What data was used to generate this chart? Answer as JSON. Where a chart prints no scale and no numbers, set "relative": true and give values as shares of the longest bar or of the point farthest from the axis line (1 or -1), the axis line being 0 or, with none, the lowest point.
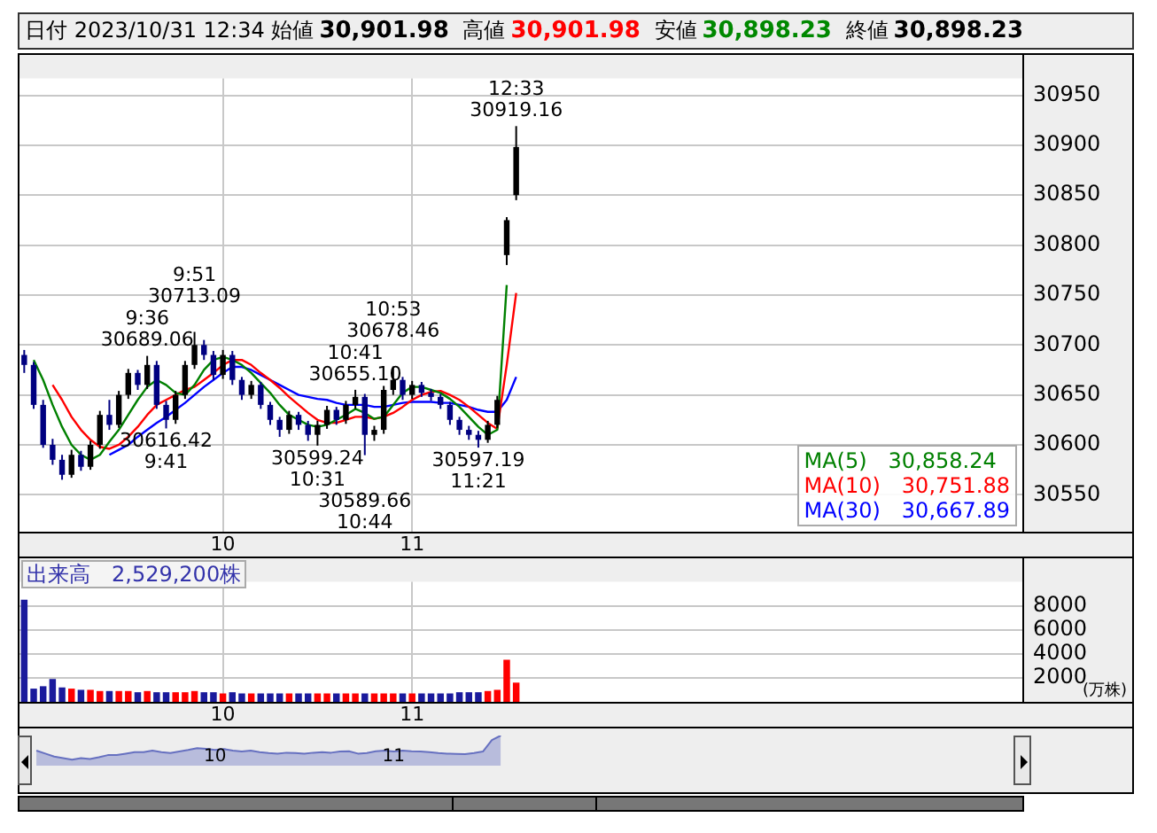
{
  "chart_data": [
    {
      "type": "candlestick",
      "title": "日付 2023/10/31 12:34",
      "annotations": [
        "始値 30,901.98",
        "高値 30,901.98",
        "安値 30,898.23",
        "終値 30,898.23",
        {
          "text": "12:33\n30919.16",
          "y": 30919.16
        },
        {
          "text": "9:36\n30689.06",
          "y": 30689.06
        },
        {
          "text": "9:51\n30713.09",
          "y": 30713.09
        },
        {
          "text": "30616.42\n9:41",
          "y": 30616.42
        },
        {
          "text": "10:41\n30655.10",
          "y": 30655.1
        },
        {
          "text": "10:53\n30678.46",
          "y": 30678.46
        },
        {
          "text": "30599.24\n10:31",
          "y": 30599.24
        },
        {
          "text": "30589.66\n10:44",
          "y": 30589.66
        },
        {
          "text": "30597.19\n11:21",
          "y": 30597.19
        }
      ],
      "categories": [
        null,
        null,
        null,
        null,
        null,
        null,
        null,
        null,
        null,
        null,
        null,
        null,
        null,
        null,
        null,
        null,
        null,
        null,
        null,
        null,
        null,
        "10",
        null,
        null,
        null,
        null,
        null,
        null,
        null,
        null,
        null,
        null,
        null,
        null,
        null,
        null,
        null,
        null,
        null,
        null,
        null,
        "11",
        null,
        null,
        null,
        null,
        null,
        null,
        null,
        null,
        null,
        null,
        null,
        null,
        null,
        null,
        null,
        null,
        null,
        null,
        null,
        null,
        null,
        null,
        null,
        null,
        null,
        null,
        null,
        null,
        null,
        null,
        null,
        null,
        null,
        null,
        null,
        null,
        null,
        null,
        null,
        null,
        null,
        null,
        null,
        null,
        null,
        null,
        null,
        null,
        null,
        null,
        null,
        null,
        null,
        null,
        null,
        null,
        null,
        null,
        null,
        null,
        null,
        null,
        null,
        null
      ],
      "ohlc": [
        [
          30690,
          30695,
          30672,
          30680
        ],
        [
          30680,
          30683,
          30636,
          30640
        ],
        [
          30640,
          30645,
          30597,
          30600
        ],
        [
          30600,
          30606,
          30580,
          30585
        ],
        [
          30585,
          30590,
          30565,
          30570
        ],
        [
          30570,
          30595,
          30567,
          30590
        ],
        [
          30590,
          30594,
          30574,
          30578
        ],
        [
          30578,
          30604,
          30575,
          30600
        ],
        [
          30600,
          30634,
          30596,
          30630
        ],
        [
          30630,
          30645,
          30615,
          30620
        ],
        [
          30620,
          30654,
          30617,
          30650
        ],
        [
          30650,
          30676,
          30646,
          30672
        ],
        [
          30672,
          30675,
          30655,
          30660
        ],
        [
          30660,
          30689.06,
          30656,
          30680
        ],
        [
          30680,
          30684,
          30636,
          30640
        ],
        [
          30640,
          30644,
          30616.42,
          30625
        ],
        [
          30625,
          30654,
          30621,
          30650
        ],
        [
          30650,
          30684,
          30646,
          30680
        ],
        [
          30680,
          30713.09,
          30676,
          30700
        ],
        [
          30700,
          30705,
          30685,
          30690
        ],
        [
          30690,
          30694,
          30665,
          30670
        ],
        [
          30670,
          30695,
          30666,
          30690
        ],
        [
          30690,
          30694,
          30660,
          30665
        ],
        [
          30665,
          30668,
          30645,
          30650
        ],
        [
          30650,
          30664,
          30646,
          30660
        ],
        [
          30660,
          30663,
          30636,
          30640
        ],
        [
          30640,
          30643,
          30620,
          30625
        ],
        [
          30625,
          30628,
          30608,
          30615
        ],
        [
          30615,
          30634,
          30611,
          30630
        ],
        [
          30630,
          30633,
          30615,
          30620
        ],
        [
          30620,
          30624,
          30604,
          30610
        ],
        [
          30610,
          30624,
          30599.24,
          30620
        ],
        [
          30620,
          30639,
          30616,
          30635
        ],
        [
          30635,
          30638,
          30620,
          30625
        ],
        [
          30625,
          30644,
          30621,
          30640
        ],
        [
          30640,
          30655.1,
          30636,
          30648
        ],
        [
          30648,
          30651,
          30589.66,
          30610
        ],
        [
          30610,
          30619,
          30604,
          30615
        ],
        [
          30615,
          30659,
          30611,
          30655
        ],
        [
          30655,
          30678.46,
          30650,
          30665
        ],
        [
          30665,
          30668,
          30645,
          30650
        ],
        [
          30650,
          30664,
          30646,
          30660
        ],
        [
          30660,
          30663,
          30648,
          30652
        ],
        [
          30652,
          30656,
          30644,
          30648
        ],
        [
          30648,
          30651,
          30636,
          30640
        ],
        [
          30640,
          30643,
          30620,
          30625
        ],
        [
          30625,
          30628,
          30610,
          30615
        ],
        [
          30615,
          30619,
          30605,
          30610
        ],
        [
          30610,
          30614,
          30597.19,
          30605
        ],
        [
          30605,
          30624,
          30602,
          30620
        ],
        [
          30620,
          30649,
          30617,
          30645
        ],
        [
          30790,
          30828,
          30780,
          30825
        ],
        [
          30850,
          30919.16,
          30845,
          30898.23
        ],
        null,
        null,
        null,
        null,
        null,
        null,
        null,
        null,
        null,
        null,
        null,
        null,
        null,
        null,
        null,
        null,
        null,
        null,
        null,
        null,
        null,
        null,
        null,
        null,
        null,
        null,
        null,
        null,
        null,
        null,
        null,
        null,
        null,
        null,
        null,
        null,
        null,
        null,
        null,
        null,
        null,
        null,
        null,
        null,
        null,
        null,
        null,
        null,
        null,
        null,
        null,
        null,
        null
      ],
      "colors": [
        "#000080",
        "#000080",
        "#000080",
        "#000080",
        "#000080",
        "#000000",
        "#000080",
        "#000000",
        "#000000",
        "#000080",
        "#000000",
        "#000000",
        "#000080",
        "#000000",
        "#000080",
        "#000080",
        "#000000",
        "#000000",
        "#000000",
        "#000080",
        "#000080",
        "#000000",
        "#000080",
        "#000080",
        "#000000",
        "#000080",
        "#000080",
        "#000080",
        "#000000",
        "#000080",
        "#000080",
        "#000000",
        "#000000",
        "#000080",
        "#000000",
        "#000000",
        "#000080",
        "#000000",
        "#000000",
        "#000000",
        "#000080",
        "#000000",
        "#000080",
        "#000080",
        "#000080",
        "#000080",
        "#000080",
        "#000080",
        "#000080",
        "#000000",
        "#000000",
        "#000000",
        "#000000",
        null,
        null,
        null,
        null,
        null,
        null,
        null,
        null,
        null,
        null,
        null,
        null,
        null,
        null,
        null,
        null,
        null,
        null,
        null,
        null,
        null,
        null,
        null,
        null,
        null,
        null,
        null,
        null,
        null,
        null,
        null,
        null,
        null,
        null,
        null,
        null,
        null,
        null,
        null,
        null,
        null,
        null,
        null,
        null,
        null,
        null,
        null,
        null,
        null,
        null,
        null,
        null,
        null
      ],
      "series": [
        {
          "type": "line",
          "name": "MA(5) 30,858.24",
          "color": "#008000",
          "values": [
            null,
            30685,
            30665,
            30640,
            30618,
            30600,
            30590,
            30585,
            30590,
            30603,
            30615,
            30630,
            30645,
            30658,
            30665,
            30660,
            30652,
            30650,
            30660,
            30675,
            30685,
            30688,
            30685,
            30680,
            30672,
            30662,
            30652,
            30640,
            30630,
            30625,
            30620,
            30618,
            30620,
            30625,
            30630,
            30636,
            30632,
            30626,
            30628,
            30640,
            30652,
            30658,
            30658,
            30655,
            30652,
            30646,
            30638,
            30628,
            30618,
            30610,
            30615,
            30760,
            null,
            null,
            null,
            null,
            null,
            null,
            null,
            null,
            null,
            null,
            null,
            null,
            null,
            null,
            null,
            null,
            null,
            null,
            null,
            null,
            null,
            null,
            null,
            null,
            null,
            null,
            null,
            null,
            null,
            null,
            null,
            null,
            null,
            null,
            null,
            null,
            null,
            null,
            null,
            null,
            null,
            null,
            null,
            null,
            null,
            null,
            null,
            null,
            null,
            null,
            null,
            null,
            null,
            null
          ]
        },
        {
          "type": "line",
          "name": "MA(10) 30,751.88",
          "color": "#ff0000",
          "values": [
            null,
            null,
            null,
            30660,
            30645,
            30628,
            30615,
            30605,
            30598,
            30596,
            30600,
            30608,
            30618,
            30630,
            30640,
            30645,
            30650,
            30655,
            30658,
            30665,
            30672,
            30680,
            30685,
            30685,
            30680,
            30672,
            30665,
            30657,
            30648,
            30640,
            30632,
            30625,
            30622,
            30622,
            30625,
            30628,
            30628,
            30626,
            30628,
            30632,
            30638,
            30645,
            30650,
            30653,
            30654,
            30650,
            30645,
            30638,
            30630,
            30622,
            30616,
            30680,
            30752,
            null,
            null,
            null,
            null,
            null,
            null,
            null,
            null,
            null,
            null,
            null,
            null,
            null,
            null,
            null,
            null,
            null,
            null,
            null,
            null,
            null,
            null,
            null,
            null,
            null,
            null,
            null,
            null,
            null,
            null,
            null,
            null,
            null,
            null,
            null,
            null,
            null,
            null,
            null,
            null,
            null,
            null,
            null,
            null,
            null,
            null,
            null,
            null,
            null,
            null,
            null,
            null,
            null
          ]
        },
        {
          "type": "line",
          "name": "MA(30) 30,667.89",
          "color": "#0000ff",
          "values": [
            null,
            null,
            null,
            null,
            null,
            null,
            null,
            null,
            null,
            30590,
            30595,
            30600,
            30608,
            30615,
            30622,
            30628,
            30635,
            30642,
            30650,
            30658,
            30665,
            30672,
            30678,
            30678,
            30675,
            30670,
            30665,
            30660,
            30655,
            30650,
            30648,
            30646,
            30645,
            30642,
            30640,
            30640,
            30640,
            30638,
            30638,
            30640,
            30642,
            30643,
            30643,
            30643,
            30642,
            30642,
            30640,
            30638,
            30635,
            30633,
            30633,
            30645,
            30668,
            null,
            null,
            null,
            null,
            null,
            null,
            null,
            null,
            null,
            null,
            null,
            null,
            null,
            null,
            null,
            null,
            null,
            null,
            null,
            null,
            null,
            null,
            null,
            null,
            null,
            null,
            null,
            null,
            null,
            null,
            null,
            null,
            null,
            null,
            null,
            null,
            null,
            null,
            null,
            null,
            null,
            null,
            null,
            null,
            null,
            null,
            null,
            null,
            null,
            null,
            null,
            null,
            null
          ]
        }
      ],
      "ylim": [
        30513,
        30967
      ],
      "yticks": [
        30550,
        30600,
        30650,
        30700,
        30750,
        30800,
        30850,
        30900,
        30950
      ],
      "grid": true,
      "legend": "bottom right"
    },
    {
      "type": "bar",
      "title": "出来高　2,529,200株",
      "ylabel": "(万株)",
      "categories": [
        null,
        null,
        null,
        null,
        null,
        null,
        null,
        null,
        null,
        null,
        null,
        null,
        null,
        null,
        null,
        null,
        null,
        null,
        null,
        null,
        null,
        "10",
        null,
        null,
        null,
        null,
        null,
        null,
        null,
        null,
        null,
        null,
        null,
        null,
        null,
        null,
        null,
        null,
        null,
        null,
        null,
        "11",
        null,
        null,
        null,
        null,
        null,
        null,
        null,
        null,
        null,
        null,
        null,
        null,
        null,
        null,
        null,
        null,
        null,
        null,
        null,
        null,
        null,
        null,
        null,
        null,
        null,
        null,
        null,
        null,
        null,
        null,
        null,
        null,
        null,
        null,
        null,
        null,
        null,
        null,
        null,
        null,
        null,
        null,
        null,
        null,
        null,
        null,
        null,
        null,
        null,
        null,
        null,
        null,
        null,
        null,
        null,
        null,
        null,
        null,
        null,
        null,
        null,
        null,
        null,
        null
      ],
      "values": [
        8500,
        1100,
        1300,
        1900,
        1200,
        1100,
        1000,
        1000,
        900,
        900,
        900,
        900,
        800,
        900,
        800,
        800,
        800,
        800,
        900,
        800,
        800,
        700,
        800,
        700,
        700,
        700,
        700,
        700,
        700,
        700,
        700,
        700,
        700,
        700,
        700,
        700,
        700,
        700,
        700,
        700,
        700,
        700,
        700,
        700,
        700,
        700,
        800,
        800,
        800,
        900,
        1000,
        3500,
        1600,
        null,
        null,
        null,
        null,
        null,
        null,
        null,
        null,
        null,
        null,
        null,
        null,
        null,
        null,
        null,
        null,
        null,
        null,
        null,
        null,
        null,
        null,
        null,
        null,
        null,
        null,
        null,
        null,
        null,
        null,
        null,
        null,
        null,
        null,
        null,
        null,
        null,
        null,
        null,
        null,
        null,
        null,
        null,
        null,
        null,
        null,
        null,
        null,
        null,
        null,
        null,
        null,
        null
      ],
      "colors": [
        "#1a1a9c",
        "#1a1a9c",
        "#1a1a9c",
        "#1a1a9c",
        "#1a1a9c",
        "#ff0000",
        "#1a1a9c",
        "#ff0000",
        "#ff0000",
        "#1a1a9c",
        "#ff0000",
        "#ff0000",
        "#1a1a9c",
        "#ff0000",
        "#1a1a9c",
        "#1a1a9c",
        "#ff0000",
        "#ff0000",
        "#ff0000",
        "#1a1a9c",
        "#1a1a9c",
        "#ff0000",
        "#1a1a9c",
        "#1a1a9c",
        "#ff0000",
        "#1a1a9c",
        "#1a1a9c",
        "#1a1a9c",
        "#ff0000",
        "#1a1a9c",
        "#1a1a9c",
        "#ff0000",
        "#ff0000",
        "#1a1a9c",
        "#ff0000",
        "#ff0000",
        "#1a1a9c",
        "#ff0000",
        "#ff0000",
        "#ff0000",
        "#1a1a9c",
        "#ff0000",
        "#1a1a9c",
        "#1a1a9c",
        "#1a1a9c",
        "#1a1a9c",
        "#1a1a9c",
        "#1a1a9c",
        "#1a1a9c",
        "#ff0000",
        "#ff0000",
        "#ff0000",
        "#ff0000",
        null,
        null,
        null,
        null,
        null,
        null,
        null,
        null,
        null,
        null,
        null,
        null,
        null,
        null,
        null,
        null,
        null,
        null,
        null,
        null,
        null,
        null,
        null,
        null,
        null,
        null,
        null,
        null,
        null,
        null,
        null,
        null,
        null,
        null,
        null,
        null,
        null,
        null,
        null,
        null,
        null,
        null,
        null,
        null,
        null,
        null,
        null,
        null,
        null,
        null,
        null,
        null,
        null
      ],
      "ylim": [
        0,
        10000
      ],
      "yticks": [
        2000,
        4000,
        6000,
        8000
      ],
      "grid": true
    },
    {
      "type": "area",
      "relative": true,
      "color": "#6670c0",
      "categories": [
        null,
        null,
        null,
        null,
        null,
        null,
        null,
        null,
        null,
        null,
        null,
        null,
        null,
        null,
        null,
        null,
        null,
        null,
        null,
        null,
        "10",
        null,
        null,
        null,
        null,
        null,
        null,
        null,
        null,
        null,
        null,
        null,
        null,
        null,
        null,
        null,
        null,
        null,
        null,
        null,
        "11",
        null,
        null,
        null,
        null,
        null,
        null,
        null,
        null,
        null,
        null,
        null,
        null,
        null,
        null,
        null,
        null,
        null,
        null,
        null,
        null,
        null,
        null,
        null,
        null,
        null,
        null,
        null,
        null,
        null,
        null,
        null,
        null,
        null,
        null,
        null,
        null,
        null,
        null,
        null,
        null,
        null,
        null,
        null,
        null,
        null,
        null,
        null,
        null,
        null,
        null,
        null,
        null,
        null,
        null,
        null,
        null,
        null
      ],
      "values": [
        0.5,
        0.4,
        0.3,
        0.25,
        0.2,
        0.25,
        0.22,
        0.28,
        0.35,
        0.35,
        0.4,
        0.45,
        0.45,
        0.5,
        0.45,
        0.42,
        0.47,
        0.52,
        0.58,
        0.56,
        0.52,
        0.55,
        0.5,
        0.47,
        0.5,
        0.45,
        0.42,
        0.4,
        0.43,
        0.42,
        0.4,
        0.43,
        0.45,
        0.43,
        0.47,
        0.48,
        0.4,
        0.42,
        0.48,
        0.5,
        0.47,
        0.5,
        0.48,
        0.47,
        0.45,
        0.42,
        0.4,
        0.39,
        0.38,
        0.42,
        0.47,
        0.85,
        1,
        null,
        null,
        null,
        null,
        null,
        null,
        null,
        null,
        null,
        null,
        null,
        null,
        null,
        null,
        null,
        null,
        null,
        null,
        null,
        null,
        null,
        null,
        null,
        null,
        null,
        null,
        null,
        null,
        null,
        null,
        null,
        null,
        null,
        null,
        null,
        null,
        null,
        null,
        null,
        null,
        null,
        null,
        null,
        null,
        null
      ]
    }
  ]
}
